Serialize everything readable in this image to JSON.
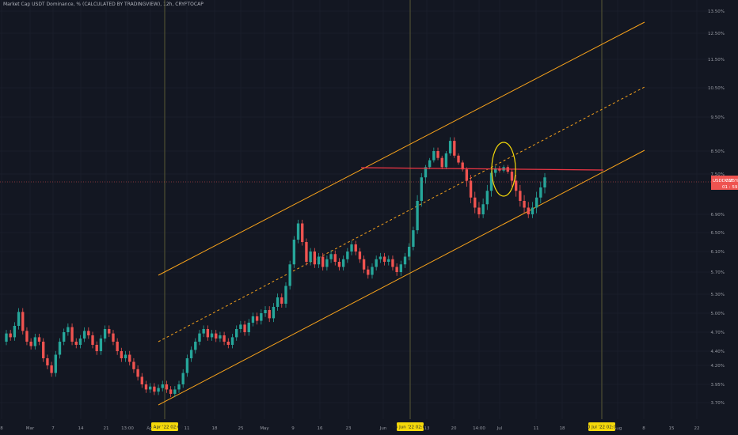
{
  "header": {
    "title": "Market Cap USDT Dominance, % (CALCULATED BY TRADINGVIEW), 12h, CRYPTOCAP"
  },
  "chart_data": {
    "type": "candlestick",
    "title": "Market Cap USDT Dominance, % (CALCULATED BY TRADINGVIEW), 12h, CRYPTOCAP",
    "y_unit": "%",
    "y_ticks": [
      "13.50%",
      "12.50%",
      "11.50%",
      "10.50%",
      "9.50%",
      "8.50%",
      "7.50%",
      "6.90%",
      "6.50%",
      "6.10%",
      "5.70%",
      "5.30%",
      "5.00%",
      "4.70%",
      "4.40%",
      "4.20%",
      "3.95%",
      "3.70%"
    ],
    "x_ticks": [
      "8",
      "Mar",
      "7",
      "14",
      "21",
      "13:00",
      "Apr",
      "11",
      "18",
      "25",
      "May",
      "9",
      "16",
      "23",
      "Jun",
      "13",
      "20",
      "14:00",
      "Jul",
      "11",
      "18",
      "Aug",
      "8",
      "15",
      "22"
    ],
    "date_markers": [
      "05 Apr '22   02:00",
      "06 Jun '22   02:00",
      "20 Jul '22   02:00"
    ],
    "last_price": {
      "symbol": "USDDOM",
      "value": "7.25%",
      "sub": "01 : 59 : 14"
    },
    "candles": [
      [
        4.55,
        4.68
      ],
      [
        4.68,
        4.62
      ],
      [
        4.62,
        4.8
      ],
      [
        4.8,
        5.02
      ],
      [
        5.02,
        4.72
      ],
      [
        4.72,
        4.55
      ],
      [
        4.55,
        4.48
      ],
      [
        4.48,
        4.62
      ],
      [
        4.62,
        4.55
      ],
      [
        4.55,
        4.3
      ],
      [
        4.3,
        4.2
      ],
      [
        4.2,
        4.1
      ],
      [
        4.1,
        4.35
      ],
      [
        4.35,
        4.55
      ],
      [
        4.55,
        4.7
      ],
      [
        4.7,
        4.78
      ],
      [
        4.78,
        4.55
      ],
      [
        4.55,
        4.5
      ],
      [
        4.5,
        4.6
      ],
      [
        4.6,
        4.72
      ],
      [
        4.72,
        4.65
      ],
      [
        4.65,
        4.5
      ],
      [
        4.5,
        4.4
      ],
      [
        4.4,
        4.6
      ],
      [
        4.6,
        4.75
      ],
      [
        4.75,
        4.68
      ],
      [
        4.68,
        4.55
      ],
      [
        4.55,
        4.4
      ],
      [
        4.4,
        4.3
      ],
      [
        4.3,
        4.35
      ],
      [
        4.35,
        4.25
      ],
      [
        4.25,
        4.15
      ],
      [
        4.15,
        4.05
      ],
      [
        4.05,
        3.95
      ],
      [
        3.95,
        3.88
      ],
      [
        3.88,
        3.92
      ],
      [
        3.92,
        3.85
      ],
      [
        3.85,
        3.9
      ],
      [
        3.9,
        3.95
      ],
      [
        3.95,
        3.88
      ],
      [
        3.88,
        3.82
      ],
      [
        3.82,
        3.88
      ],
      [
        3.88,
        3.95
      ],
      [
        3.95,
        4.1
      ],
      [
        4.1,
        4.3
      ],
      [
        4.3,
        4.42
      ],
      [
        4.42,
        4.55
      ],
      [
        4.55,
        4.68
      ],
      [
        4.68,
        4.75
      ],
      [
        4.75,
        4.62
      ],
      [
        4.62,
        4.68
      ],
      [
        4.68,
        4.6
      ],
      [
        4.6,
        4.65
      ],
      [
        4.65,
        4.55
      ],
      [
        4.55,
        4.5
      ],
      [
        4.5,
        4.62
      ],
      [
        4.62,
        4.75
      ],
      [
        4.75,
        4.82
      ],
      [
        4.82,
        4.7
      ],
      [
        4.7,
        4.85
      ],
      [
        4.85,
        4.95
      ],
      [
        4.95,
        4.88
      ],
      [
        4.88,
        5.0
      ],
      [
        5.0,
        5.05
      ],
      [
        5.05,
        4.92
      ],
      [
        4.92,
        5.1
      ],
      [
        5.1,
        5.25
      ],
      [
        5.25,
        5.15
      ],
      [
        5.15,
        5.45
      ],
      [
        5.45,
        5.85
      ],
      [
        5.85,
        6.35
      ],
      [
        6.35,
        6.7
      ],
      [
        6.7,
        6.3
      ],
      [
        6.3,
        5.9
      ],
      [
        5.9,
        6.1
      ],
      [
        6.1,
        5.85
      ],
      [
        5.85,
        6.0
      ],
      [
        6.0,
        5.8
      ],
      [
        5.8,
        5.95
      ],
      [
        5.95,
        6.05
      ],
      [
        6.05,
        5.9
      ],
      [
        5.9,
        5.8
      ],
      [
        5.8,
        5.95
      ],
      [
        5.95,
        6.1
      ],
      [
        6.1,
        6.25
      ],
      [
        6.25,
        6.1
      ],
      [
        6.1,
        5.95
      ],
      [
        5.95,
        5.75
      ],
      [
        5.75,
        5.65
      ],
      [
        5.65,
        5.8
      ],
      [
        5.8,
        5.95
      ],
      [
        5.95,
        6.0
      ],
      [
        6.0,
        5.9
      ],
      [
        5.9,
        5.95
      ],
      [
        5.95,
        5.8
      ],
      [
        5.8,
        5.7
      ],
      [
        5.7,
        5.85
      ],
      [
        5.85,
        6.0
      ],
      [
        6.0,
        6.2
      ],
      [
        6.2,
        6.55
      ],
      [
        6.55,
        7.1
      ],
      [
        7.1,
        7.45
      ],
      [
        7.45,
        7.8
      ],
      [
        7.8,
        8.1
      ],
      [
        8.1,
        8.5
      ],
      [
        8.5,
        8.2
      ],
      [
        8.2,
        7.8
      ],
      [
        7.8,
        8.4
      ],
      [
        8.4,
        8.8
      ],
      [
        8.8,
        8.3
      ],
      [
        8.3,
        8.0
      ],
      [
        8.0,
        7.7
      ],
      [
        7.7,
        7.4
      ],
      [
        7.4,
        7.15
      ],
      [
        7.15,
        7.0
      ],
      [
        7.0,
        6.9
      ],
      [
        6.9,
        7.05
      ],
      [
        7.05,
        7.25
      ],
      [
        7.25,
        7.55
      ],
      [
        7.55,
        7.75
      ],
      [
        7.75,
        7.65
      ],
      [
        7.65,
        7.8
      ],
      [
        7.8,
        7.6
      ],
      [
        7.6,
        7.4
      ],
      [
        7.4,
        7.25
      ],
      [
        7.25,
        7.1
      ],
      [
        7.1,
        7.0
      ],
      [
        7.0,
        6.9
      ],
      [
        6.9,
        7.0
      ],
      [
        7.0,
        7.15
      ],
      [
        7.15,
        7.3
      ],
      [
        7.3,
        7.45
      ]
    ]
  },
  "colors": {
    "background": "#131722",
    "bull": "#26a69a",
    "bear": "#ef5350",
    "channel": "#f7a21b",
    "resistance": "#f23645",
    "circle": "#f5d90a",
    "marker_bg": "#f5d90a",
    "grid": "#1e2230",
    "vline": "#6b6a3a"
  }
}
